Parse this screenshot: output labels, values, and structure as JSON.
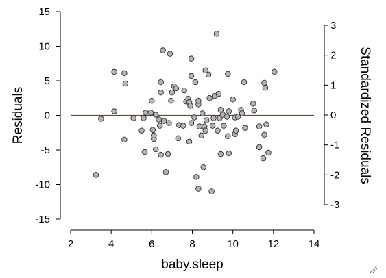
{
  "chart_data": {
    "type": "scatter",
    "xlabel": "baby.sleep",
    "ylabel": "Residuals",
    "y2label": "Standardized Residuals",
    "xlim": [
      2,
      14
    ],
    "ylim": [
      -15,
      15
    ],
    "y2lim": [
      -3,
      3
    ],
    "x_ticks": [
      "2",
      "4",
      "6",
      "8",
      "10",
      "12",
      "14"
    ],
    "y_ticks": [
      "15",
      "10",
      "5",
      "0",
      "-5",
      "-10",
      "-15"
    ],
    "y2_ticks": [
      "3",
      "2",
      "1",
      "0",
      "-1",
      "-2",
      "-3"
    ],
    "reference_line_y": 0,
    "colors": {
      "point_fill": "#b4b4b4",
      "point_stroke": "#2b2b2b",
      "reference_line": "#8b3a2a"
    },
    "grid": false,
    "legend": "none",
    "points": [
      {
        "x": 3.25,
        "y": -8.6
      },
      {
        "x": 3.5,
        "y": -0.5
      },
      {
        "x": 4.15,
        "y": 6.3
      },
      {
        "x": 4.15,
        "y": 0.6
      },
      {
        "x": 4.65,
        "y": 6.1
      },
      {
        "x": 4.7,
        "y": 4.6
      },
      {
        "x": 4.65,
        "y": -3.5
      },
      {
        "x": 5.1,
        "y": -0.4
      },
      {
        "x": 5.5,
        "y": -2.2
      },
      {
        "x": 5.6,
        "y": -0.4
      },
      {
        "x": 5.7,
        "y": 0.4
      },
      {
        "x": 5.65,
        "y": -5.3
      },
      {
        "x": 5.95,
        "y": 0.4
      },
      {
        "x": 6.0,
        "y": 2.1
      },
      {
        "x": 6.05,
        "y": -2.1
      },
      {
        "x": 6.1,
        "y": -3.4
      },
      {
        "x": 6.1,
        "y": -2.9
      },
      {
        "x": 6.2,
        "y": -4.9
      },
      {
        "x": 6.2,
        "y": 0.1
      },
      {
        "x": 6.35,
        "y": -0.6
      },
      {
        "x": 6.4,
        "y": -1.5
      },
      {
        "x": 6.45,
        "y": -5.7
      },
      {
        "x": 6.45,
        "y": 3.3
      },
      {
        "x": 6.45,
        "y": 4.8
      },
      {
        "x": 6.55,
        "y": 9.4
      },
      {
        "x": 6.6,
        "y": -0.8
      },
      {
        "x": 6.7,
        "y": -8.2
      },
      {
        "x": 6.8,
        "y": -5.6
      },
      {
        "x": 6.85,
        "y": -1.1
      },
      {
        "x": 6.9,
        "y": 8.9
      },
      {
        "x": 6.95,
        "y": 2.1
      },
      {
        "x": 7.0,
        "y": 3.3
      },
      {
        "x": 7.1,
        "y": 4.2
      },
      {
        "x": 7.2,
        "y": 3.9
      },
      {
        "x": 7.3,
        "y": -3.3
      },
      {
        "x": 7.35,
        "y": -1.4
      },
      {
        "x": 7.55,
        "y": -1.5
      },
      {
        "x": 7.6,
        "y": 3.6
      },
      {
        "x": 7.7,
        "y": 2.0
      },
      {
        "x": 7.8,
        "y": 2.4
      },
      {
        "x": 7.85,
        "y": 1.9
      },
      {
        "x": 7.9,
        "y": 1.4
      },
      {
        "x": 7.85,
        "y": -3.8
      },
      {
        "x": 7.95,
        "y": -1.1
      },
      {
        "x": 7.95,
        "y": 8.2
      },
      {
        "x": 7.95,
        "y": 5.7
      },
      {
        "x": 8.1,
        "y": -0.3
      },
      {
        "x": 8.15,
        "y": 4.8
      },
      {
        "x": 8.2,
        "y": -8.9
      },
      {
        "x": 8.3,
        "y": 1.6
      },
      {
        "x": 8.3,
        "y": 2.1
      },
      {
        "x": 8.3,
        "y": -10.6
      },
      {
        "x": 8.35,
        "y": -1.6
      },
      {
        "x": 8.45,
        "y": -2.9
      },
      {
        "x": 8.5,
        "y": 0.3
      },
      {
        "x": 8.55,
        "y": -7.5
      },
      {
        "x": 8.6,
        "y": -1.6
      },
      {
        "x": 8.65,
        "y": -2.2
      },
      {
        "x": 8.65,
        "y": 6.5
      },
      {
        "x": 8.7,
        "y": -0.7
      },
      {
        "x": 8.8,
        "y": 5.9
      },
      {
        "x": 8.85,
        "y": 2.5
      },
      {
        "x": 8.95,
        "y": -11.0
      },
      {
        "x": 9.0,
        "y": -1.5
      },
      {
        "x": 9.05,
        "y": -0.4
      },
      {
        "x": 9.1,
        "y": 2.8
      },
      {
        "x": 9.2,
        "y": 11.8
      },
      {
        "x": 9.25,
        "y": -2.2
      },
      {
        "x": 9.3,
        "y": 3.1
      },
      {
        "x": 9.35,
        "y": -0.4
      },
      {
        "x": 9.4,
        "y": -5.6
      },
      {
        "x": 9.4,
        "y": 0.8
      },
      {
        "x": 9.5,
        "y": 0.1
      },
      {
        "x": 9.55,
        "y": -1.5
      },
      {
        "x": 9.7,
        "y": -0.2
      },
      {
        "x": 9.75,
        "y": 6.0
      },
      {
        "x": 9.75,
        "y": -3.0
      },
      {
        "x": 9.8,
        "y": -5.5
      },
      {
        "x": 9.8,
        "y": 0.6
      },
      {
        "x": 10.0,
        "y": 2.3
      },
      {
        "x": 10.1,
        "y": -0.3
      },
      {
        "x": 10.1,
        "y": -2.7
      },
      {
        "x": 10.15,
        "y": -2.2
      },
      {
        "x": 10.25,
        "y": -0.2
      },
      {
        "x": 10.4,
        "y": 0.8
      },
      {
        "x": 10.45,
        "y": 0.3
      },
      {
        "x": 10.55,
        "y": 4.8
      },
      {
        "x": 10.6,
        "y": -1.8
      },
      {
        "x": 11.0,
        "y": 1.7
      },
      {
        "x": 11.05,
        "y": 0.7
      },
      {
        "x": 11.3,
        "y": -1.6
      },
      {
        "x": 11.3,
        "y": -4.6
      },
      {
        "x": 11.5,
        "y": -6.2
      },
      {
        "x": 11.55,
        "y": 4.7
      },
      {
        "x": 11.6,
        "y": 4.0
      },
      {
        "x": 11.65,
        "y": -1.3
      },
      {
        "x": 11.75,
        "y": -5.4
      },
      {
        "x": 11.55,
        "y": -2.8
      },
      {
        "x": 12.05,
        "y": 6.3
      }
    ]
  }
}
